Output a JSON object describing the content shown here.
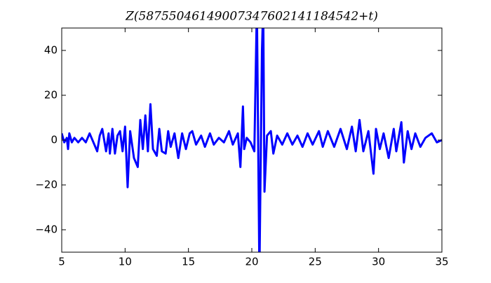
{
  "chart_data": {
    "type": "line",
    "title": "Z(58755046149007347602141184542+t)",
    "x": [
      5,
      5.2,
      5.4,
      5.5,
      5.6,
      5.8,
      6.0,
      6.3,
      6.6,
      6.9,
      7.2,
      7.5,
      7.8,
      8.0,
      8.2,
      8.5,
      8.7,
      8.8,
      9.0,
      9.2,
      9.4,
      9.6,
      9.8,
      10.0,
      10.2,
      10.4,
      10.7,
      11.0,
      11.2,
      11.4,
      11.6,
      11.8,
      12.0,
      12.2,
      12.5,
      12.7,
      12.9,
      13.2,
      13.4,
      13.6,
      13.9,
      14.2,
      14.5,
      14.8,
      15.1,
      15.3,
      15.6,
      16.0,
      16.3,
      16.7,
      17.0,
      17.4,
      17.8,
      18.2,
      18.5,
      18.9,
      19.1,
      19.3,
      19.4,
      19.6,
      19.9,
      20.2,
      20.4,
      20.6,
      20.8,
      20.9,
      21.0,
      21.2,
      21.5,
      21.7,
      22.0,
      22.4,
      22.8,
      23.2,
      23.6,
      24.0,
      24.4,
      24.8,
      25.3,
      25.6,
      26.0,
      26.5,
      27.0,
      27.5,
      27.9,
      28.2,
      28.5,
      28.8,
      29.2,
      29.6,
      29.8,
      30.1,
      30.4,
      30.8,
      31.2,
      31.4,
      31.8,
      32.0,
      32.3,
      32.6,
      32.9,
      33.3,
      33.7,
      34.2,
      34.6,
      35
    ],
    "series": [
      {
        "color": "#0000ff",
        "values": [
          3,
          -1,
          1,
          -4,
          3,
          -1,
          1,
          -1,
          1,
          -1,
          3,
          -1,
          -5,
          2,
          5,
          -5,
          3,
          -6,
          5,
          -6,
          2,
          4,
          -5,
          6,
          -21,
          4,
          -8,
          -12,
          9,
          -4,
          11,
          -5,
          16,
          -4,
          -7,
          5,
          -5,
          -6,
          4,
          -3,
          3,
          -8,
          3,
          -4,
          3,
          4,
          -2,
          2,
          -3,
          3,
          -2,
          1,
          -1,
          4,
          -2,
          3,
          -12,
          15,
          -4,
          1,
          -1,
          -5,
          60,
          -60,
          40,
          60,
          -23,
          2,
          4,
          -6,
          2,
          -2,
          3,
          -2,
          2,
          -3,
          3,
          -2,
          4,
          -3,
          4,
          -3,
          5,
          -4,
          6,
          -5,
          9,
          -5,
          4,
          -15,
          5,
          -4,
          3,
          -8,
          5,
          -5,
          8,
          -10,
          4,
          -4,
          3,
          -3,
          1,
          3,
          -1,
          0
        ]
      }
    ],
    "xlim": [
      5,
      35
    ],
    "ylim": [
      -50,
      50
    ],
    "xticks": [
      5,
      10,
      15,
      20,
      25,
      30,
      35
    ],
    "yticks": [
      {
        "value": -40,
        "label": "−40"
      },
      {
        "value": -20,
        "label": "−20"
      },
      0,
      20,
      40
    ]
  }
}
